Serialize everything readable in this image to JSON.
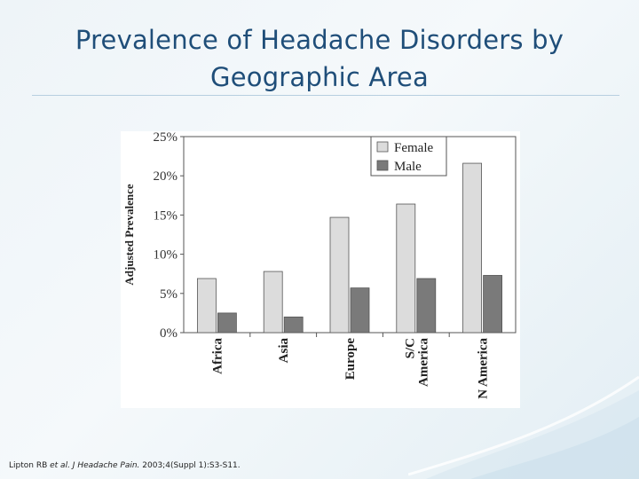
{
  "slide": {
    "title_line1": "Prevalence of Headache Disorders by",
    "title_line2": "Geographic Area",
    "citation_authors": "Lipton RB ",
    "citation_etal": "et al.",
    "citation_journal": " J Headache Pain.",
    "citation_ref": " 2003;4(Suppl 1):S3-S11."
  },
  "colors": {
    "title": "#1f4e79",
    "female": "#dcdcdc",
    "male": "#7a7a7a"
  },
  "chart_data": {
    "type": "bar",
    "title": "",
    "xlabel": "",
    "ylabel": "Adjusted Prevalence",
    "categories": [
      "Africa",
      "Asia",
      "Europe",
      "S/C America",
      "N America"
    ],
    "category_lines": [
      [
        "Africa"
      ],
      [
        "Asia"
      ],
      [
        "Europe"
      ],
      [
        "S/C",
        "America"
      ],
      [
        "N America"
      ]
    ],
    "series": [
      {
        "name": "Female",
        "values": [
          6.9,
          7.8,
          14.7,
          16.4,
          21.6
        ]
      },
      {
        "name": "Male",
        "values": [
          2.5,
          2.0,
          5.7,
          6.9,
          7.3
        ]
      }
    ],
    "ylim": [
      0,
      25
    ],
    "yticks": [
      "0%",
      "5%",
      "10%",
      "15%",
      "20%",
      "25%"
    ],
    "grid": false,
    "legend": "top-right"
  }
}
